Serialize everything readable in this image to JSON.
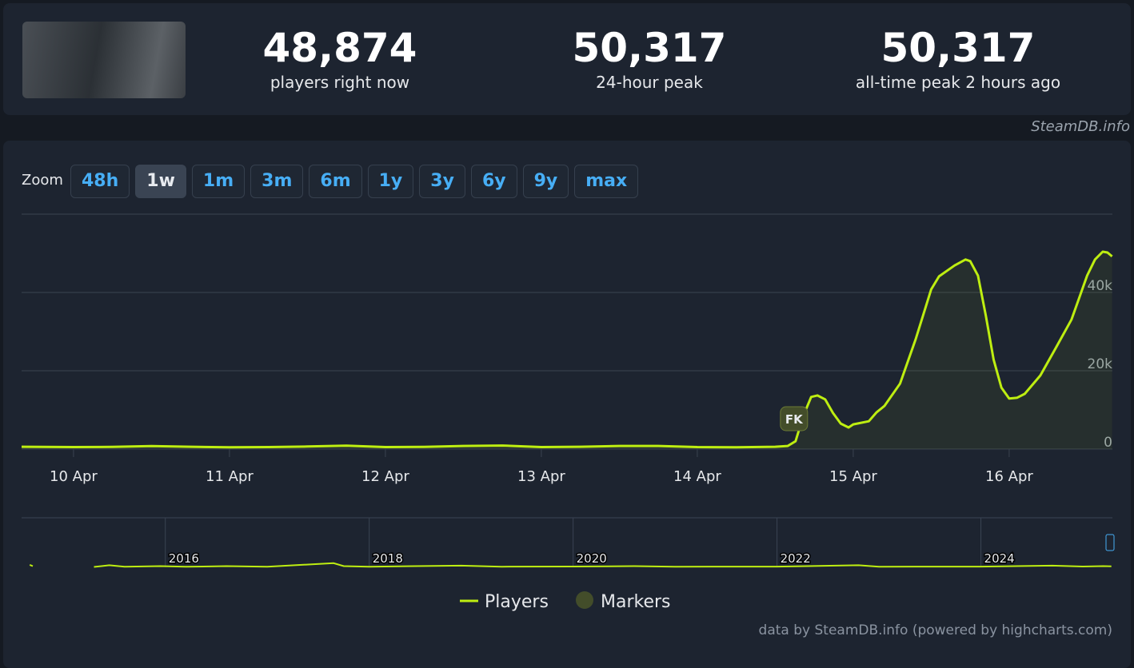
{
  "header": {
    "stats": [
      {
        "value": "48,874",
        "label": "players right now"
      },
      {
        "value": "50,317",
        "label": "24-hour peak"
      },
      {
        "value": "50,317",
        "label": "all-time peak 2 hours ago"
      }
    ],
    "source": "SteamDB.info"
  },
  "zoom": {
    "label": "Zoom",
    "buttons": [
      "48h",
      "1w",
      "1m",
      "3m",
      "6m",
      "1y",
      "3y",
      "6y",
      "9y",
      "max"
    ],
    "active": 1
  },
  "chart_data": {
    "type": "line",
    "series": [
      {
        "name": "Players",
        "color": "#beee11",
        "x": [
          9.667,
          10,
          10.25,
          10.5,
          10.75,
          11,
          11.25,
          11.5,
          11.75,
          12,
          12.25,
          12.5,
          12.75,
          13,
          13.25,
          13.5,
          13.75,
          14,
          14.25,
          14.5,
          14.58,
          14.63,
          14.68,
          14.73,
          14.77,
          14.82,
          14.87,
          14.92,
          14.97,
          15.0,
          15.1,
          15.15,
          15.2,
          15.3,
          15.4,
          15.5,
          15.55,
          15.65,
          15.72,
          15.75,
          15.8,
          15.85,
          15.9,
          15.95,
          16.0,
          16.05,
          16.1,
          16.2,
          16.3,
          16.4,
          16.5,
          16.55,
          16.6,
          16.63,
          16.66
        ],
        "values": [
          600,
          500,
          550,
          750,
          600,
          450,
          500,
          650,
          850,
          500,
          550,
          800,
          900,
          500,
          600,
          800,
          800,
          500,
          450,
          600,
          800,
          2000,
          8500,
          13300,
          13700,
          12700,
          9200,
          6500,
          5500,
          6300,
          7100,
          9400,
          11000,
          16700,
          28000,
          40800,
          44100,
          46900,
          48400,
          48000,
          44300,
          34100,
          22900,
          15700,
          12900,
          13100,
          14100,
          18800,
          25900,
          33100,
          44300,
          48400,
          50400,
          50200,
          49200
        ]
      }
    ],
    "markers": {
      "name": "Markers",
      "color": "#434d2a",
      "points": [
        {
          "x": 14.62,
          "label": "FK"
        }
      ]
    },
    "xlim": [
      9.667,
      16.662
    ],
    "xticks": [
      {
        "value": 10,
        "label": "10 Apr"
      },
      {
        "value": 11,
        "label": "11 Apr"
      },
      {
        "value": 12,
        "label": "12 Apr"
      },
      {
        "value": 13,
        "label": "13 Apr"
      },
      {
        "value": 14,
        "label": "14 Apr"
      },
      {
        "value": 15,
        "label": "15 Apr"
      },
      {
        "value": 16,
        "label": "16 Apr"
      }
    ],
    "ylim": [
      0,
      60000
    ],
    "yticks": [
      0,
      {
        "value": 20000,
        "label": "20k"
      },
      {
        "value": 40000,
        "label": "40k"
      }
    ],
    "grid": true,
    "navigator": {
      "xlim": [
        2014.59,
        2025.29
      ],
      "ylim": [
        0,
        60000
      ],
      "xticks": [
        2016,
        2018,
        2020,
        2022,
        2024
      ],
      "x": [
        2014.67,
        2014.7,
        null,
        2015.3,
        2015.45,
        2015.6,
        2015.95,
        2016.2,
        2016.6,
        2017.0,
        2017.65,
        2017.75,
        2018.0,
        2018.9,
        2019.3,
        2020.0,
        2020.6,
        2021.0,
        2022.0,
        2022.8,
        2023.0,
        2024.0,
        2024.7,
        2025.0,
        2025.2,
        2025.28
      ],
      "values": [
        3000,
        1500,
        null,
        500,
        2500,
        800,
        1500,
        700,
        1500,
        800,
        5000,
        1500,
        800,
        2000,
        800,
        1000,
        1500,
        800,
        900,
        2500,
        800,
        900,
        2000,
        1000,
        1500,
        1200
      ]
    },
    "credit": "data by SteamDB.info (powered by highcharts.com)"
  }
}
